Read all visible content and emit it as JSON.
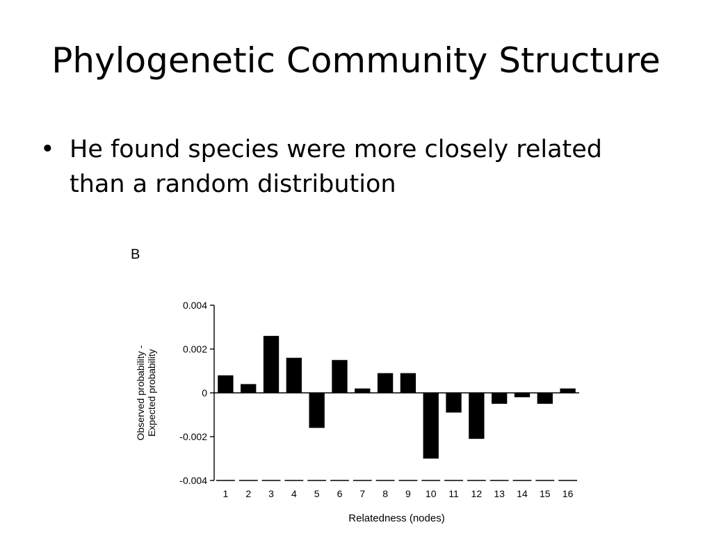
{
  "slide": {
    "title": "Phylogenetic Community Structure",
    "bullets": [
      "He found species were more closely related than a random distribution"
    ]
  },
  "chart_data": {
    "type": "bar",
    "panel_label": "B",
    "title": "",
    "xlabel": "Relatedness (nodes)",
    "ylabel": [
      "Observed probability -",
      "Expected probability"
    ],
    "categories": [
      "1",
      "2",
      "3",
      "4",
      "5",
      "6",
      "7",
      "8",
      "9",
      "10",
      "11",
      "12",
      "13",
      "14",
      "15",
      "16"
    ],
    "values": [
      0.0008,
      0.0004,
      0.0026,
      0.0016,
      -0.0016,
      0.0015,
      0.0002,
      0.0009,
      0.0009,
      -0.003,
      -0.0009,
      -0.0021,
      -0.0005,
      -0.0002,
      -0.0005,
      0.0002
    ],
    "ylim": [
      -0.004,
      0.004
    ],
    "yticks": [
      0.004,
      0.002,
      0,
      -0.002,
      -0.004
    ],
    "ytick_labels": [
      "0.004",
      "0.002",
      "0",
      "-0.002",
      "-0.004"
    ],
    "grid": false,
    "bar_color": "#000000"
  }
}
